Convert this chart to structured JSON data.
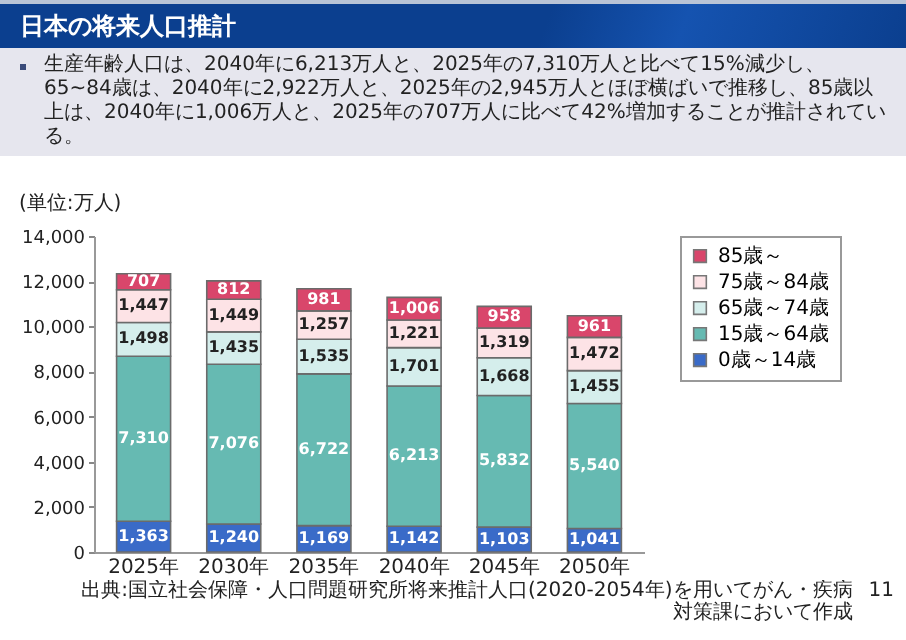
{
  "chart_data": {
    "type": "bar",
    "stacked": true,
    "title": "日本の将来人口推計",
    "subtitle": "生産年齢人口は、2040年に6,213万人と、2025年の7,310万人と比べて15%減少し、65~84歳は、2040年に2,922万人と、2025年の2,945万人とほぼ横ばいで推移し、85歳以上は、2040年に1,006万人と、2025年の707万人に比べて42%増加することが推計されている。",
    "ylabel": "(単位:万人)",
    "categories": [
      "2025年",
      "2030年",
      "2035年",
      "2040年",
      "2045年",
      "2050年"
    ],
    "series": [
      {
        "name": "0歳～14歳",
        "color": "#3a6bc8",
        "values": [
          1363,
          1240,
          1169,
          1142,
          1103,
          1041
        ],
        "value_labels": [
          "1,363",
          "1,240",
          "1,169",
          "1,142",
          "1,103",
          "1,041"
        ]
      },
      {
        "name": "15歳～64歳",
        "color": "#66bab2",
        "values": [
          7310,
          7076,
          6722,
          6213,
          5832,
          5540
        ],
        "value_labels": [
          "7,310",
          "7,076",
          "6,722",
          "6,213",
          "5,832",
          "5,540"
        ]
      },
      {
        "name": "65歳～74歳",
        "color": "#d5eeec",
        "values": [
          1498,
          1435,
          1535,
          1701,
          1668,
          1455
        ],
        "value_labels": [
          "1,498",
          "1,435",
          "1,535",
          "1,701",
          "1,668",
          "1,455"
        ]
      },
      {
        "name": "75歳～84歳",
        "color": "#fde3e6",
        "values": [
          1447,
          1449,
          1257,
          1221,
          1319,
          1472
        ],
        "value_labels": [
          "1,447",
          "1,449",
          "1,257",
          "1,221",
          "1,319",
          "1,472"
        ]
      },
      {
        "name": "85歳～",
        "color": "#d9466b",
        "values": [
          707,
          812,
          981,
          1006,
          958,
          961
        ],
        "value_labels": [
          "707",
          "812",
          "981",
          "1,006",
          "958",
          "961"
        ]
      }
    ],
    "ylim": [
      0,
      14000
    ],
    "yticks": [
      0,
      {
        "value": 2000,
        "label": "2,000"
      },
      {
        "value": 4000,
        "label": "4,000"
      },
      {
        "value": 6000,
        "label": "6,000"
      },
      {
        "value": 8000,
        "label": "8,000"
      },
      {
        "value": 10000,
        "label": "10,000"
      },
      {
        "value": 12000,
        "label": "12,000"
      },
      {
        "value": 14000,
        "label": "14,000"
      }
    ],
    "legend": "right",
    "annotations": [
      "出典:国立社会保障・人口問題研究所将来推計人口(2020-2054年)を用いてがん・疾病対策課において作成",
      "11"
    ]
  }
}
